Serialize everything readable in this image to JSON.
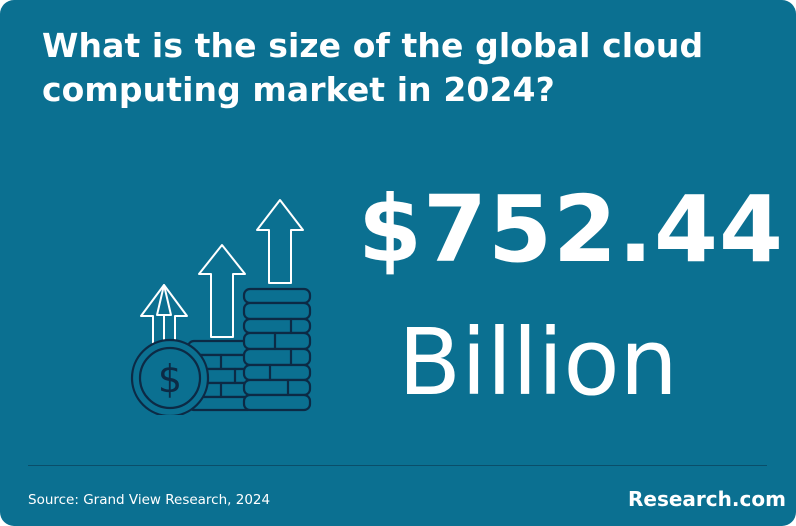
{
  "question": "What is the size of the global cloud computing market in 2024?",
  "stat": {
    "amount": "$752.44",
    "unit": "Billion"
  },
  "illustration": {
    "icon": "coins-growth-arrows-icon",
    "coin_symbol": "$"
  },
  "footer": {
    "source": "Source: Grand View Research, 2024",
    "brand": "Research.com"
  },
  "colors": {
    "background": "#0b7091",
    "text": "#ffffff",
    "icon_line": "#0c2a45",
    "divider": "#0a4e6a"
  }
}
